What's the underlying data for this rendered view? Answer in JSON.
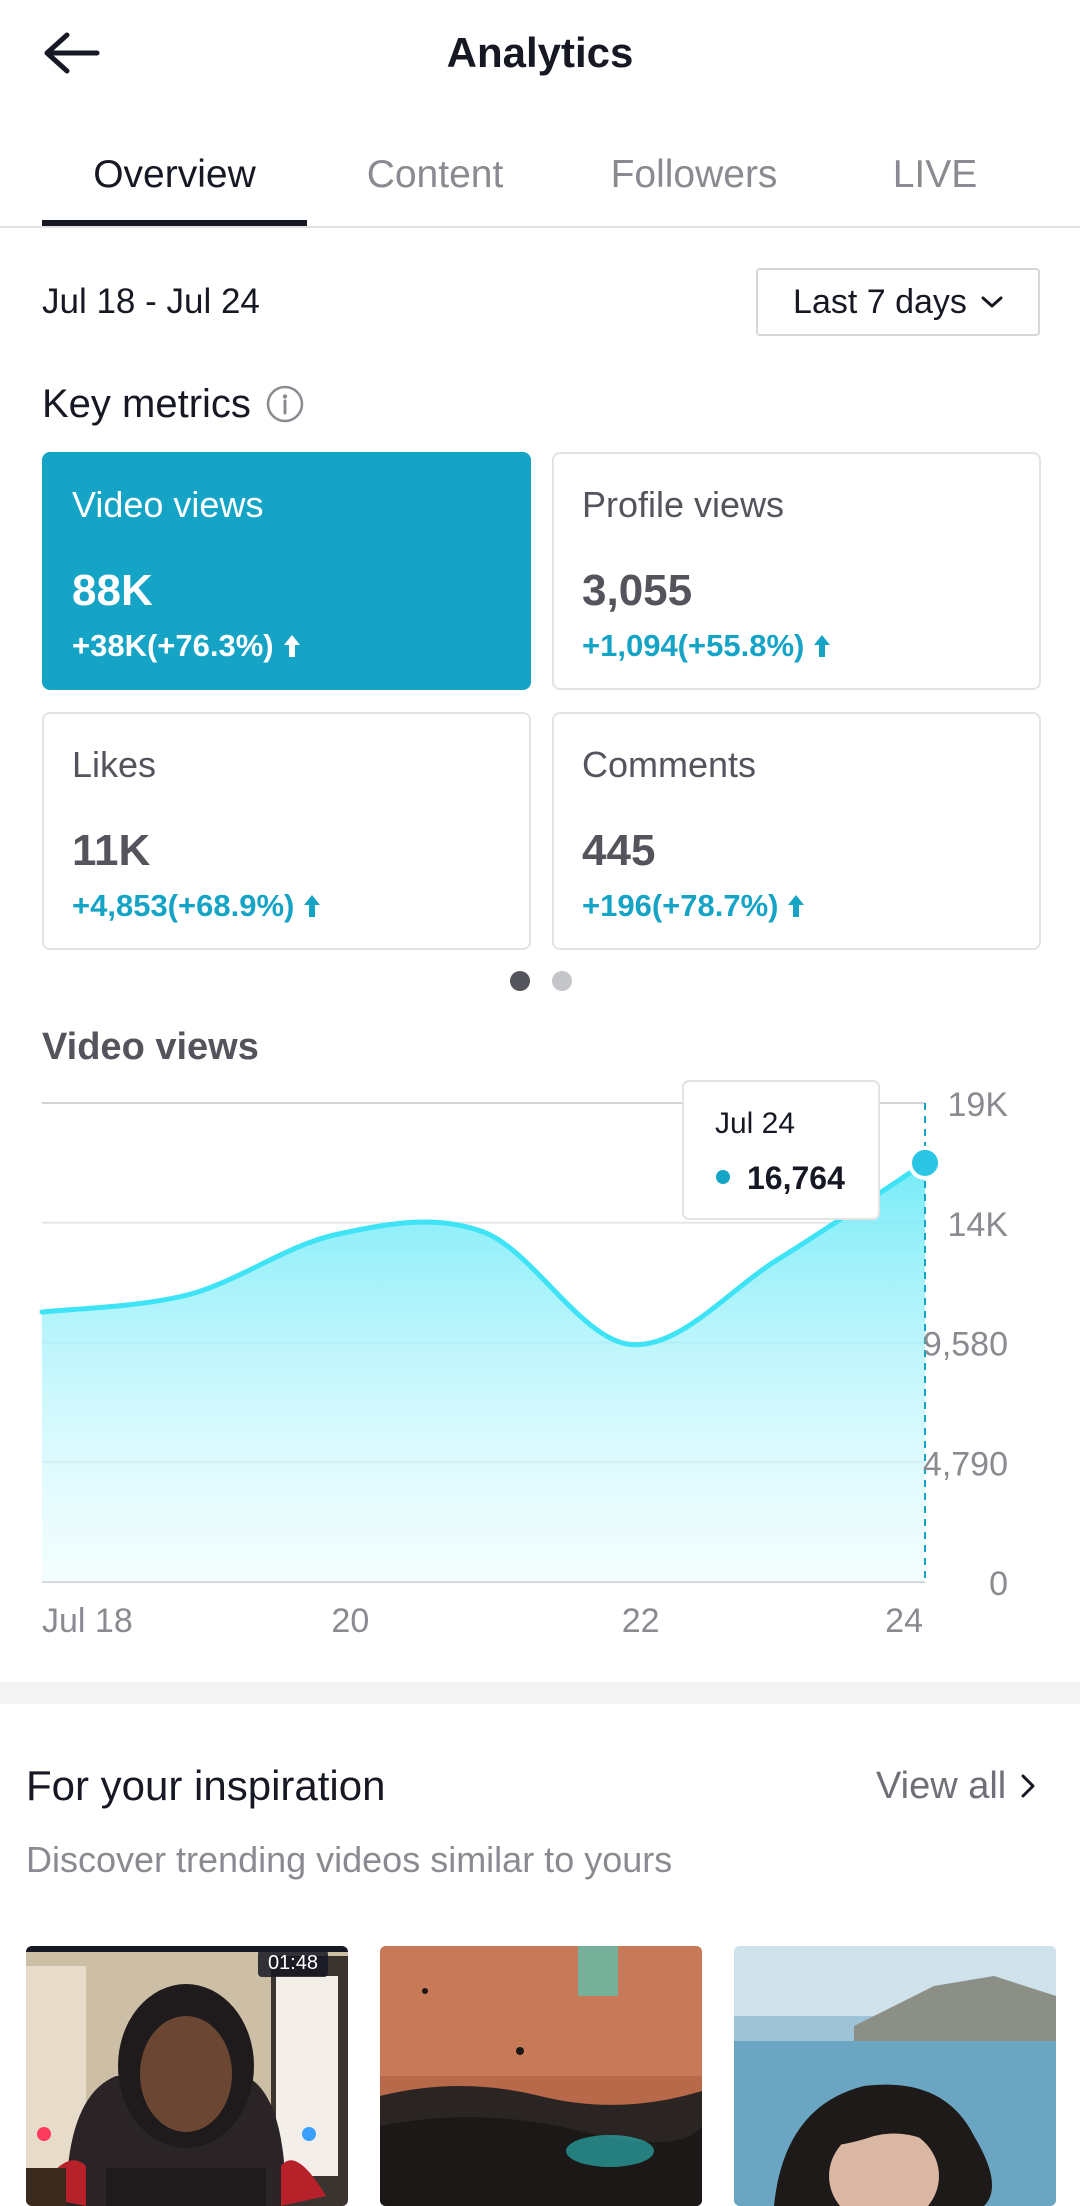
{
  "header": {
    "title": "Analytics",
    "back_icon": "arrow-left-icon"
  },
  "tabs": [
    {
      "label": "Overview",
      "active": true
    },
    {
      "label": "Content",
      "active": false
    },
    {
      "label": "Followers",
      "active": false
    },
    {
      "label": "LIVE",
      "active": false
    }
  ],
  "date_range": "Jul 18 - Jul 24",
  "range_select": {
    "value": "Last 7 days",
    "icon": "chevron-down-icon"
  },
  "key_metrics": {
    "title": "Key metrics",
    "info_icon": "info-icon",
    "cards": [
      {
        "label": "Video views",
        "value": "88K",
        "change": "+38K(+76.3%)",
        "active": true
      },
      {
        "label": "Profile views",
        "value": "3,055",
        "change": "+1,094(+55.8%)",
        "active": false
      },
      {
        "label": "Likes",
        "value": "11K",
        "change": "+4,853(+68.9%)",
        "active": false
      },
      {
        "label": "Comments",
        "value": "445",
        "change": "+196(+78.7%)",
        "active": false
      }
    ],
    "page_count": 2,
    "current_page": 1
  },
  "colors": {
    "accent": "#16a4c6",
    "chart_line": "#3ee3f5",
    "text": "#161823",
    "muted": "#8a8b91"
  },
  "chart_title": "Video views",
  "chart_data": {
    "type": "area",
    "title": "Video views",
    "x": [
      "Jul 18",
      "Jul 19",
      "Jul 20",
      "Jul 21",
      "Jul 22",
      "Jul 23",
      "Jul 24"
    ],
    "x_tick_labels": [
      "Jul 18",
      "20",
      "22",
      "24"
    ],
    "values": [
      10800,
      11500,
      13900,
      14000,
      9500,
      12900,
      16764
    ],
    "y_ticks": [
      "0",
      "4,790",
      "9,580",
      "14K",
      "19K"
    ],
    "ylim": [
      0,
      19160
    ],
    "grid": true,
    "tooltip": {
      "date": "Jul 24",
      "value": "16,764"
    }
  },
  "inspiration": {
    "title": "For your inspiration",
    "subtitle": "Discover trending videos similar to yours",
    "view_all": "View all",
    "view_all_icon": "chevron-right-icon",
    "thumbnails": [
      {
        "badge": "01:48"
      },
      {
        "badge": ""
      },
      {
        "badge": ""
      }
    ]
  }
}
